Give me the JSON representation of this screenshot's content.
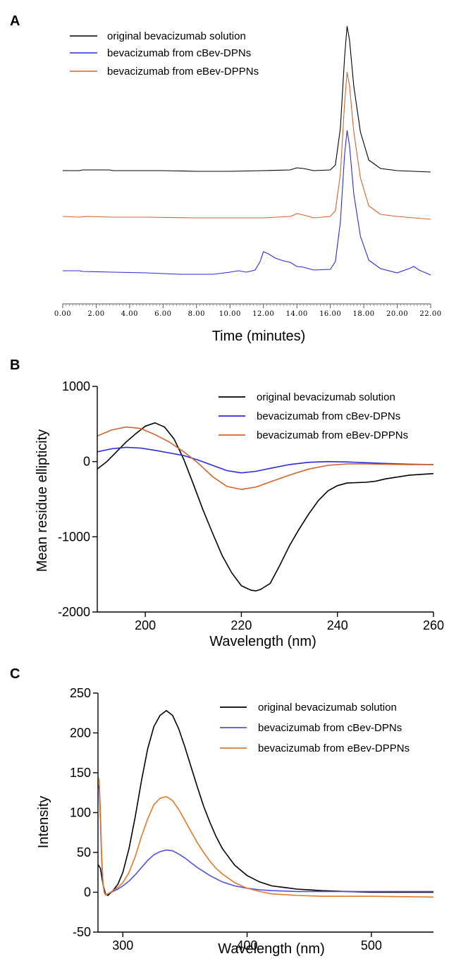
{
  "chart_data": [
    {
      "panel": "A",
      "type": "line",
      "xlabel": "Time (minutes)",
      "ylabel": "",
      "xlim": [
        0,
        22
      ],
      "x_tick_labels": [
        "0.00",
        "2.00",
        "4.00",
        "6.00",
        "8.00",
        "10.00",
        "12.00",
        "14.00",
        "16.00",
        "18.00",
        "20.00",
        "22.00"
      ],
      "legend": "top-left",
      "colors": {
        "black": "#000000",
        "blue": "#2a2ae0",
        "orange": "#d2632a"
      },
      "series": [
        {
          "name": "original bevacizumab solution",
          "color": "#000000",
          "offset": 196,
          "x": [
            0,
            1,
            1.2,
            2.8,
            3,
            4.5,
            6,
            8,
            10,
            12,
            13.6,
            14.0,
            14.4,
            15,
            16,
            16.3,
            16.6,
            16.85,
            17.0,
            17.15,
            17.4,
            17.8,
            18.3,
            19.0,
            20,
            22
          ],
          "y": [
            0,
            0,
            1,
            1,
            0,
            0,
            0,
            -1,
            -1,
            0,
            1,
            4,
            3,
            0,
            1,
            8,
            60,
            160,
            205,
            185,
            120,
            55,
            15,
            3,
            0,
            -2
          ]
        },
        {
          "name": "bevacizumab  from cBev-DPNs",
          "color": "#2a2ae0",
          "offset": 57,
          "x": [
            0,
            1,
            1.2,
            3,
            5,
            7,
            9,
            10,
            10.5,
            11,
            11.5,
            11.8,
            12.0,
            12.3,
            12.7,
            13.2,
            13.6,
            14.0,
            14.4,
            15,
            16,
            16.3,
            16.6,
            16.85,
            17.0,
            17.15,
            17.4,
            17.8,
            18.3,
            19,
            20,
            20.7,
            21.0,
            21.3,
            22
          ],
          "y": [
            1,
            1,
            0,
            -1,
            -2,
            -4,
            -4,
            -1,
            1,
            -1,
            2,
            14,
            28,
            25,
            19,
            15,
            13,
            7,
            6,
            2,
            3,
            14,
            70,
            165,
            200,
            178,
            110,
            50,
            16,
            4,
            -2,
            4,
            7,
            2,
            -5
          ]
        },
        {
          "name": "bevacizumab  from eBev-DPPNs",
          "color": "#d2632a",
          "offset": 137,
          "x": [
            0,
            1,
            1.4,
            3,
            5,
            8,
            10,
            12,
            13.6,
            14.0,
            14.4,
            15,
            16,
            16.3,
            16.6,
            16.85,
            17.0,
            17.15,
            17.4,
            17.8,
            18.3,
            19,
            20,
            22
          ],
          "y": [
            0,
            -1,
            0,
            -1,
            -1,
            -2,
            -2,
            -2,
            0,
            4,
            2,
            -2,
            0,
            8,
            60,
            160,
            205,
            185,
            120,
            55,
            15,
            3,
            0,
            -4
          ]
        }
      ]
    },
    {
      "panel": "B",
      "type": "line",
      "xlabel": "Wavelength (nm)",
      "ylabel": "Mean residue ellipticity",
      "xlim": [
        190,
        260
      ],
      "ylim": [
        -2000,
        1000
      ],
      "x_ticks": [
        200,
        220,
        240,
        260
      ],
      "y_ticks": [
        -2000,
        -1000,
        0,
        1000
      ],
      "legend": "top-right",
      "series": [
        {
          "name": "original bevacizumab solution",
          "color": "#000000",
          "x": [
            190,
            192,
            194,
            196,
            198,
            200,
            202,
            204,
            206,
            208,
            210,
            212,
            214,
            216,
            218,
            220,
            222,
            223,
            224,
            226,
            228,
            230,
            232,
            234,
            236,
            238,
            240,
            242,
            244,
            246,
            248,
            250,
            255,
            260
          ],
          "y": [
            -100,
            0,
            130,
            260,
            370,
            470,
            515,
            460,
            300,
            30,
            -300,
            -640,
            -950,
            -1250,
            -1480,
            -1650,
            -1710,
            -1720,
            -1700,
            -1620,
            -1380,
            -1120,
            -900,
            -700,
            -520,
            -390,
            -320,
            -285,
            -280,
            -275,
            -260,
            -230,
            -180,
            -160
          ]
        },
        {
          "name": "bevacizumab  from cBev-DPNs",
          "color": "#2a2ae0",
          "x": [
            190,
            193,
            196,
            199,
            202,
            205,
            208,
            211,
            214,
            217,
            220,
            223,
            226,
            230,
            234,
            238,
            242,
            246,
            250,
            255,
            260
          ],
          "y": [
            130,
            170,
            190,
            180,
            150,
            115,
            80,
            20,
            -50,
            -120,
            -150,
            -130,
            -90,
            -40,
            -10,
            0,
            -5,
            -15,
            -25,
            -35,
            -40
          ]
        },
        {
          "name": "bevacizumab  from eBev-DPPNs",
          "color": "#d2632a",
          "x": [
            190,
            193,
            196,
            199,
            202,
            205,
            208,
            211,
            214,
            217,
            220,
            223,
            226,
            230,
            234,
            238,
            242,
            246,
            250,
            255,
            260
          ],
          "y": [
            340,
            420,
            460,
            440,
            360,
            260,
            130,
            -20,
            -200,
            -330,
            -370,
            -340,
            -270,
            -180,
            -100,
            -50,
            -30,
            -30,
            -35,
            -40,
            -40
          ]
        }
      ]
    },
    {
      "panel": "C",
      "type": "line",
      "xlabel": "Wavelength (nm)",
      "ylabel": "Intensity",
      "xlim": [
        280,
        550
      ],
      "ylim": [
        -50,
        250
      ],
      "x_ticks": [
        300,
        400,
        500
      ],
      "y_ticks": [
        -50,
        0,
        50,
        100,
        150,
        200,
        250
      ],
      "legend": "top-right",
      "series": [
        {
          "name": "original bevacizumab solution",
          "color": "#000000",
          "x": [
            280,
            282,
            284,
            286,
            288,
            292,
            296,
            300,
            305,
            310,
            315,
            320,
            325,
            330,
            335,
            340,
            345,
            350,
            355,
            360,
            365,
            370,
            375,
            380,
            390,
            400,
            410,
            420,
            430,
            440,
            450,
            460,
            480,
            500,
            520,
            550
          ],
          "y": [
            35,
            30,
            10,
            -2,
            -4,
            2,
            10,
            25,
            55,
            95,
            140,
            180,
            208,
            222,
            228,
            222,
            205,
            182,
            157,
            132,
            108,
            88,
            70,
            55,
            34,
            21,
            13,
            8,
            6,
            4,
            3,
            2,
            1,
            0,
            0,
            0
          ]
        },
        {
          "name": "bevacizumab  from cBev-DPNs",
          "color": "#5050e8",
          "x": [
            280,
            281,
            282,
            283,
            284,
            285,
            286,
            288,
            292,
            296,
            300,
            305,
            310,
            315,
            320,
            325,
            330,
            335,
            340,
            345,
            350,
            355,
            360,
            365,
            370,
            375,
            380,
            390,
            400,
            410,
            420,
            440,
            460,
            500,
            550
          ],
          "y": [
            135,
            130,
            90,
            40,
            12,
            0,
            -3,
            -2,
            1,
            4,
            8,
            14,
            22,
            31,
            40,
            47,
            51,
            53,
            52,
            48,
            43,
            37,
            31,
            26,
            21,
            17,
            13,
            8,
            5,
            3,
            2,
            1,
            1,
            1,
            1
          ]
        },
        {
          "name": "bevacizumab  from eBev-DPPNs",
          "color": "#e07a28",
          "x": [
            280,
            281,
            282,
            283,
            284,
            285,
            286,
            288,
            292,
            296,
            300,
            305,
            310,
            315,
            320,
            325,
            330,
            335,
            340,
            345,
            350,
            355,
            360,
            365,
            370,
            375,
            380,
            390,
            400,
            410,
            420,
            440,
            460,
            500,
            550
          ],
          "y": [
            145,
            140,
            100,
            45,
            12,
            0,
            -3,
            -2,
            2,
            6,
            12,
            25,
            45,
            70,
            92,
            110,
            118,
            120,
            115,
            104,
            90,
            76,
            62,
            50,
            39,
            30,
            23,
            12,
            5,
            1,
            -2,
            -4,
            -5,
            -5,
            -6
          ]
        }
      ]
    }
  ]
}
